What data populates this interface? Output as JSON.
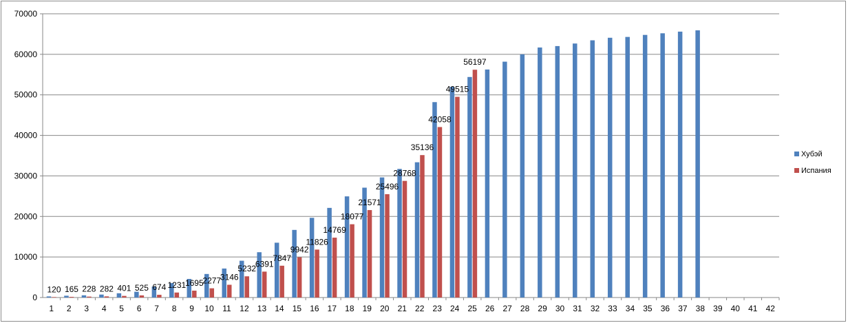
{
  "chart_data": {
    "type": "bar",
    "categories": [
      "1",
      "2",
      "3",
      "4",
      "5",
      "6",
      "7",
      "8",
      "9",
      "10",
      "11",
      "12",
      "13",
      "14",
      "15",
      "16",
      "17",
      "18",
      "19",
      "20",
      "21",
      "22",
      "23",
      "24",
      "25",
      "26",
      "27",
      "28",
      "29",
      "30",
      "31",
      "32",
      "33",
      "34",
      "35",
      "36",
      "37",
      "38",
      "39",
      "40",
      "41",
      "42"
    ],
    "ylim": [
      0,
      70000
    ],
    "yticks": [
      0,
      10000,
      20000,
      30000,
      40000,
      50000,
      60000,
      70000
    ],
    "grid": true,
    "legend_position": "right",
    "series": [
      {
        "name": "Хубэй",
        "color": "#4f81bd",
        "values": [
          270,
          444,
          549,
          729,
          1052,
          1423,
          2714,
          3554,
          4586,
          5806,
          7153,
          9074,
          11177,
          13522,
          16678,
          19665,
          22112,
          24953,
          27100,
          29631,
          31728,
          33366,
          48206,
          51986,
          54406,
          56249,
          58182,
          59989,
          61682,
          62031,
          62662,
          63454,
          64084,
          64287,
          64786,
          65187,
          65596,
          65914,
          null,
          null,
          null,
          null
        ],
        "show_labels": false
      },
      {
        "name": "Испания",
        "color": "#c0504d",
        "values": [
          120,
          165,
          228,
          282,
          401,
          525,
          674,
          1231,
          1695,
          2277,
          3146,
          5232,
          6391,
          7847,
          9942,
          11826,
          14769,
          18077,
          21571,
          25496,
          28768,
          35136,
          42058,
          49515,
          56197,
          null,
          null,
          null,
          null,
          null,
          null,
          null,
          null,
          null,
          null,
          null,
          null,
          null,
          null,
          null,
          null,
          null
        ],
        "show_labels": true
      }
    ]
  }
}
